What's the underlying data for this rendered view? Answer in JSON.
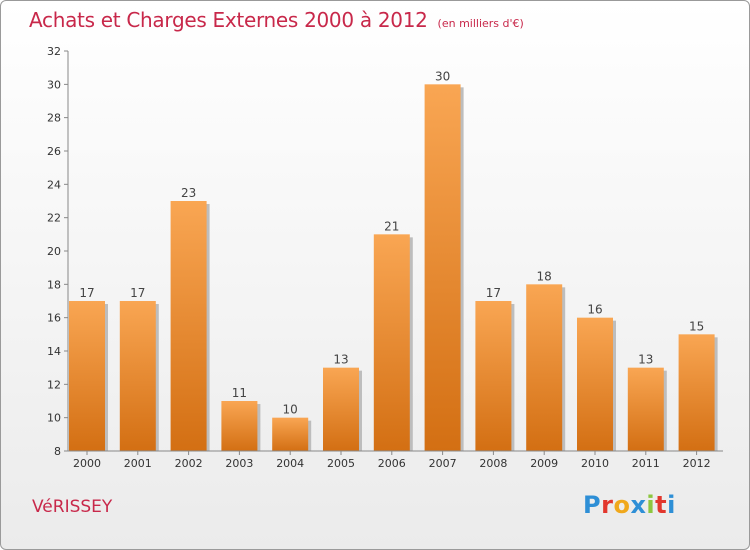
{
  "header": {
    "title": "Achats et Charges Externes 2000 à 2012",
    "subtitle": "(en milliers d'€)"
  },
  "footer": {
    "commune": "VéRISSEY",
    "logo_letters": [
      "P",
      "r",
      "o",
      "x",
      "i",
      "t",
      "i"
    ],
    "logo_colors": [
      "#2e8fd6",
      "#e2372d",
      "#f0a81c",
      "#2e8fd6",
      "#8dc63f",
      "#e2372d",
      "#2e8fd6"
    ]
  },
  "colors": {
    "title": "#c8284a",
    "bar_top": "#f9a653",
    "bar_bottom": "#d36f13",
    "axis": "#888888"
  },
  "chart_data": {
    "type": "bar",
    "title": "Achats et Charges Externes 2000 à 2012",
    "subtitle": "(en milliers d'€)",
    "categories": [
      "2000",
      "2001",
      "2002",
      "2003",
      "2004",
      "2005",
      "2006",
      "2007",
      "2008",
      "2009",
      "2010",
      "2011",
      "2012"
    ],
    "values": [
      17,
      17,
      23,
      11,
      10,
      13,
      21,
      30,
      17,
      18,
      16,
      13,
      15
    ],
    "ylim": [
      8,
      32
    ],
    "yticks": [
      8,
      10,
      12,
      14,
      16,
      18,
      20,
      22,
      24,
      26,
      28,
      30,
      32
    ],
    "grid": false,
    "legend": "none"
  }
}
